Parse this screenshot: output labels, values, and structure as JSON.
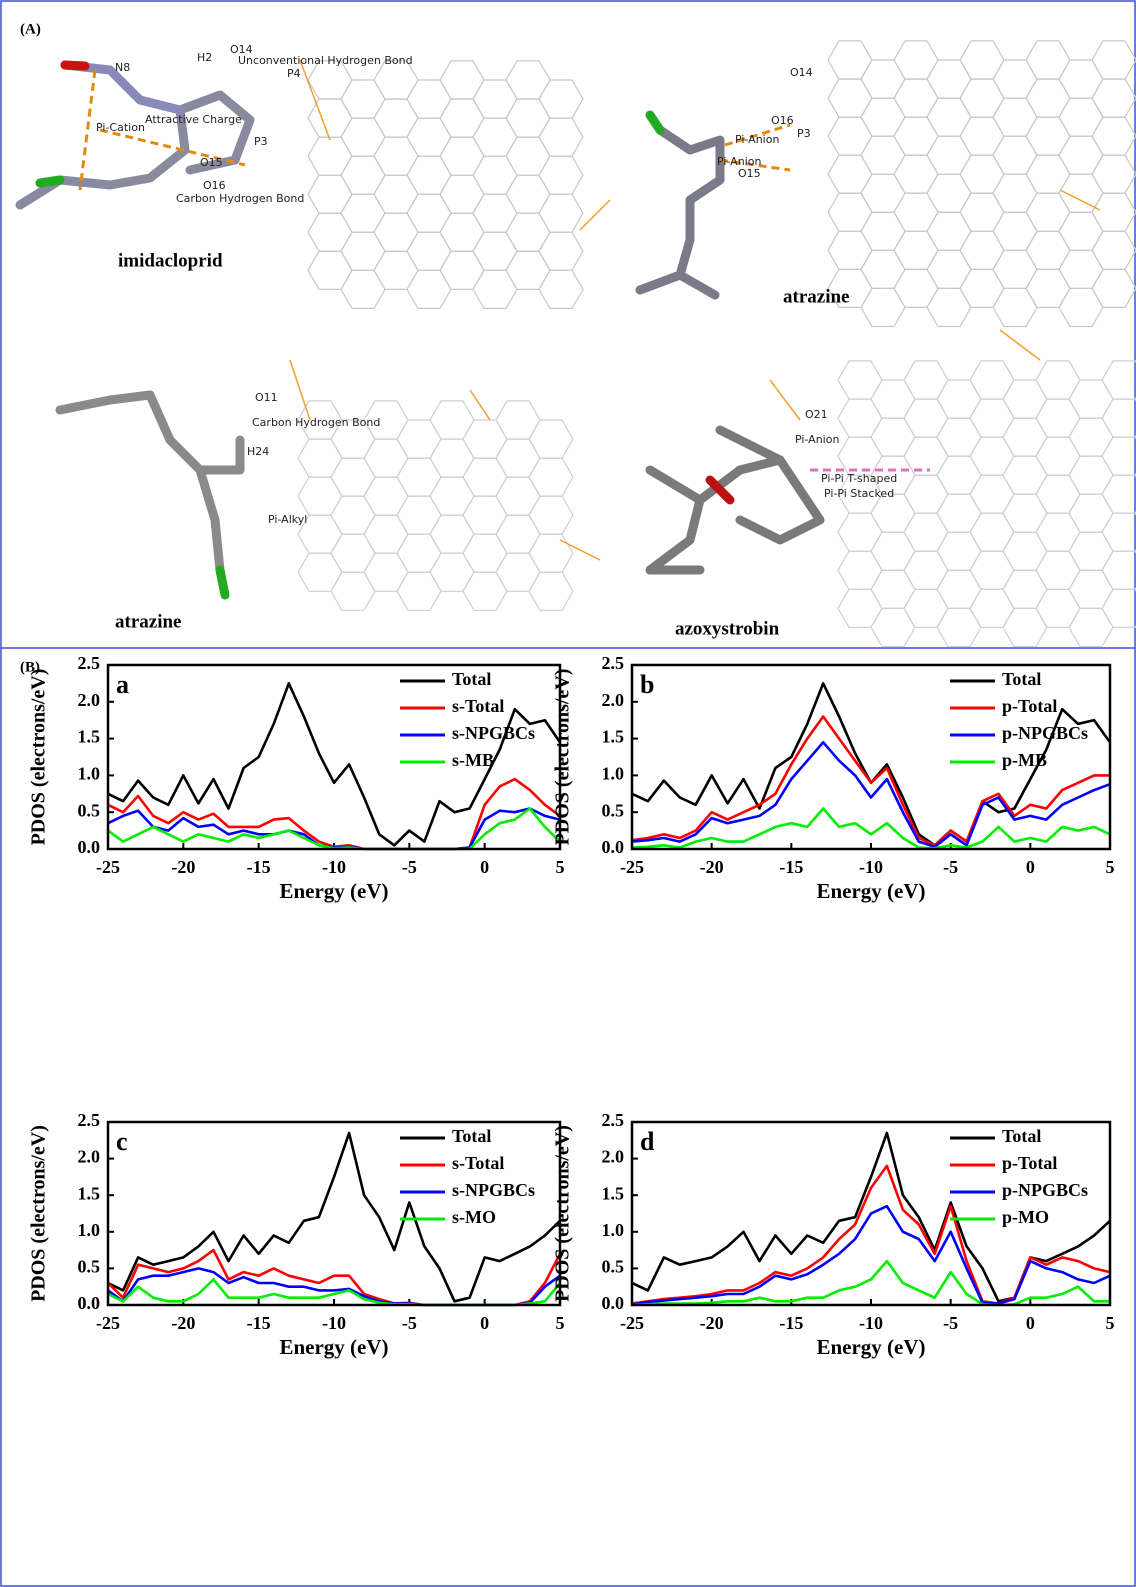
{
  "panel_a": {
    "label": "(A)",
    "views": [
      {
        "name": "imidacloprid",
        "labels": [
          "N8",
          "H2",
          "O14",
          "Unconventional Hydrogen Bond",
          "P4",
          "Pi-Cation",
          "Attractive Charge",
          "P3",
          "O15",
          "O16",
          "Carbon Hydrogen Bond"
        ]
      },
      {
        "name": "atrazine",
        "labels": [
          "O14",
          "O16",
          "P3",
          "Pi-Anion",
          "Pi-Anion",
          "O15"
        ]
      },
      {
        "name": "atrazine",
        "labels": [
          "O11",
          "Carbon Hydrogen Bond",
          "H24",
          "Pi-Alkyl"
        ]
      },
      {
        "name": "azoxystrobin",
        "labels": [
          "O21",
          "Pi-Anion",
          "Pi-Pi T-shaped",
          "Pi-Pi Stacked"
        ]
      }
    ]
  },
  "panel_b_label": "(B)",
  "chart_data": [
    {
      "type": "line",
      "panel": "a",
      "xlabel": "Energy (eV)",
      "ylabel": "PDOS (electrons/eV)",
      "xlim": [
        -25,
        5
      ],
      "ylim": [
        0,
        2.5
      ],
      "xticks": [
        -25,
        -20,
        -15,
        -10,
        -5,
        0,
        5
      ],
      "yticks": [
        {
          "value": 0,
          "label": "0.0"
        },
        0.5,
        {
          "value": 1,
          "label": "1.0"
        },
        1.5,
        {
          "value": 2,
          "label": "2.0"
        },
        2.5
      ],
      "legend": "upper right",
      "x": [
        -25,
        -24,
        -23,
        -22,
        -21,
        -20,
        -19,
        -18,
        -17,
        -16,
        -15,
        -14,
        -13,
        -12,
        -11,
        -10,
        -9,
        -8,
        -7,
        -6,
        -5,
        -4,
        -3,
        -2,
        -1,
        0,
        1,
        2,
        3,
        4,
        5
      ],
      "series": [
        {
          "name": "Total",
          "color": "#000000",
          "values": [
            0.75,
            0.65,
            0.93,
            0.7,
            0.6,
            1.0,
            0.62,
            0.95,
            0.55,
            1.1,
            1.25,
            1.7,
            2.25,
            1.8,
            1.3,
            0.9,
            1.15,
            0.7,
            0.2,
            0.05,
            0.25,
            0.1,
            0.65,
            0.5,
            0.55,
            0.95,
            1.35,
            1.9,
            1.7,
            1.75,
            1.45
          ]
        },
        {
          "name": "s-Total",
          "color": "#ff0000",
          "values": [
            0.6,
            0.5,
            0.72,
            0.45,
            0.35,
            0.5,
            0.4,
            0.48,
            0.3,
            0.3,
            0.3,
            0.4,
            0.42,
            0.25,
            0.1,
            0.03,
            0.05,
            0,
            0,
            0,
            0,
            0,
            0,
            0,
            0.02,
            0.6,
            0.85,
            0.95,
            0.8,
            0.6,
            0.45
          ]
        },
        {
          "name": "s-NPGBCs",
          "color": "#0000ff",
          "values": [
            0.35,
            0.45,
            0.52,
            0.3,
            0.25,
            0.42,
            0.3,
            0.33,
            0.2,
            0.25,
            0.2,
            0.2,
            0.25,
            0.2,
            0.05,
            0.02,
            0.03,
            0,
            0,
            0,
            0,
            0,
            0,
            0,
            0.02,
            0.4,
            0.52,
            0.5,
            0.55,
            0.45,
            0.4
          ]
        },
        {
          "name": "s-MB",
          "color": "#00ee00",
          "values": [
            0.25,
            0.1,
            0.2,
            0.3,
            0.2,
            0.1,
            0.2,
            0.15,
            0.1,
            0.2,
            0.15,
            0.2,
            0.25,
            0.15,
            0.05,
            0.01,
            0.02,
            0,
            0,
            0,
            0,
            0,
            0,
            0,
            0,
            0.2,
            0.35,
            0.4,
            0.55,
            0.3,
            0.1
          ]
        }
      ]
    },
    {
      "type": "line",
      "panel": "b",
      "xlabel": "Energy (eV)",
      "ylabel": "PDOS (electrons/eV)",
      "xlim": [
        -25,
        5
      ],
      "ylim": [
        0,
        2.5
      ],
      "xticks": [
        -25,
        -20,
        -15,
        -10,
        -5,
        0,
        5
      ],
      "yticks": [
        {
          "value": 0,
          "label": "0.0"
        },
        0.5,
        {
          "value": 1,
          "label": "1.0"
        },
        1.5,
        {
          "value": 2,
          "label": "2.0"
        },
        2.5
      ],
      "legend": "upper right",
      "x": [
        -25,
        -24,
        -23,
        -22,
        -21,
        -20,
        -19,
        -18,
        -17,
        -16,
        -15,
        -14,
        -13,
        -12,
        -11,
        -10,
        -9,
        -8,
        -7,
        -6,
        -5,
        -4,
        -3,
        -2,
        -1,
        0,
        1,
        2,
        3,
        4,
        5
      ],
      "series": [
        {
          "name": "Total",
          "color": "#000000",
          "values": [
            0.75,
            0.65,
            0.93,
            0.7,
            0.6,
            1.0,
            0.62,
            0.95,
            0.55,
            1.1,
            1.25,
            1.7,
            2.25,
            1.8,
            1.3,
            0.9,
            1.15,
            0.7,
            0.2,
            0.05,
            0.25,
            0.1,
            0.65,
            0.5,
            0.55,
            0.95,
            1.35,
            1.9,
            1.7,
            1.75,
            1.45
          ]
        },
        {
          "name": "p-Total",
          "color": "#ff0000",
          "values": [
            0.12,
            0.15,
            0.2,
            0.15,
            0.25,
            0.5,
            0.4,
            0.5,
            0.6,
            0.75,
            1.15,
            1.5,
            1.8,
            1.5,
            1.2,
            0.9,
            1.1,
            0.6,
            0.15,
            0.05,
            0.25,
            0.1,
            0.65,
            0.75,
            0.45,
            0.6,
            0.55,
            0.8,
            0.9,
            1.0,
            1.0
          ]
        },
        {
          "name": "p-NPGBCs",
          "color": "#0000ff",
          "values": [
            0.1,
            0.12,
            0.15,
            0.1,
            0.2,
            0.42,
            0.35,
            0.4,
            0.45,
            0.6,
            0.95,
            1.2,
            1.45,
            1.2,
            1.0,
            0.7,
            0.95,
            0.5,
            0.1,
            0.03,
            0.2,
            0.05,
            0.6,
            0.7,
            0.4,
            0.45,
            0.4,
            0.6,
            0.7,
            0.8,
            0.88
          ]
        },
        {
          "name": "p-MB",
          "color": "#00ee00",
          "values": [
            0.02,
            0.03,
            0.05,
            0.02,
            0.1,
            0.15,
            0.1,
            0.1,
            0.2,
            0.3,
            0.35,
            0.3,
            0.55,
            0.3,
            0.35,
            0.2,
            0.35,
            0.15,
            0.02,
            0.01,
            0.05,
            0.02,
            0.1,
            0.3,
            0.1,
            0.15,
            0.1,
            0.3,
            0.25,
            0.3,
            0.2
          ]
        }
      ]
    },
    {
      "type": "line",
      "panel": "c",
      "xlabel": "Energy (eV)",
      "ylabel": "PDOS (electrons/eV)",
      "xlim": [
        -25,
        5
      ],
      "ylim": [
        0,
        2.5
      ],
      "xticks": [
        -25,
        -20,
        -15,
        -10,
        -5,
        0,
        5
      ],
      "yticks": [
        {
          "value": 0,
          "label": "0.0"
        },
        0.5,
        {
          "value": 1,
          "label": "1.0"
        },
        1.5,
        {
          "value": 2,
          "label": "2.0"
        },
        2.5
      ],
      "legend": "upper right",
      "x": [
        -25,
        -24,
        -23,
        -22,
        -21,
        -20,
        -19,
        -18,
        -17,
        -16,
        -15,
        -14,
        -13,
        -12,
        -11,
        -10,
        -9,
        -8,
        -7,
        -6,
        -5,
        -4,
        -3,
        -2,
        -1,
        0,
        1,
        2,
        3,
        4,
        5
      ],
      "series": [
        {
          "name": "Total",
          "color": "#000000",
          "values": [
            0.3,
            0.2,
            0.65,
            0.55,
            0.6,
            0.65,
            0.8,
            1.0,
            0.6,
            0.95,
            0.7,
            0.95,
            0.85,
            1.15,
            1.2,
            1.75,
            2.35,
            1.5,
            1.2,
            0.75,
            1.4,
            0.8,
            0.5,
            0.05,
            0.1,
            0.65,
            0.6,
            0.7,
            0.8,
            0.95,
            1.15
          ]
        },
        {
          "name": "s-Total",
          "color": "#ff0000",
          "values": [
            0.3,
            0.1,
            0.55,
            0.5,
            0.45,
            0.5,
            0.6,
            0.75,
            0.35,
            0.45,
            0.4,
            0.5,
            0.4,
            0.35,
            0.3,
            0.4,
            0.4,
            0.15,
            0.08,
            0.02,
            0.03,
            0,
            0,
            0,
            0,
            0,
            0,
            0,
            0.05,
            0.3,
            0.7
          ]
        },
        {
          "name": "s-NPGBCs",
          "color": "#0000ff",
          "values": [
            0.2,
            0.05,
            0.35,
            0.4,
            0.4,
            0.45,
            0.5,
            0.45,
            0.3,
            0.38,
            0.3,
            0.3,
            0.25,
            0.25,
            0.2,
            0.2,
            0.22,
            0.12,
            0.05,
            0.02,
            0.02,
            0,
            0,
            0,
            0,
            0,
            0,
            0,
            0.03,
            0.25,
            0.4
          ]
        },
        {
          "name": "s-MO",
          "color": "#00ee00",
          "values": [
            0.15,
            0.05,
            0.25,
            0.1,
            0.05,
            0.05,
            0.15,
            0.35,
            0.1,
            0.1,
            0.1,
            0.15,
            0.1,
            0.1,
            0.1,
            0.15,
            0.2,
            0.08,
            0.03,
            0.01,
            0.01,
            0,
            0,
            0,
            0,
            0,
            0,
            0,
            0.02,
            0.05,
            0.3
          ]
        }
      ]
    },
    {
      "type": "line",
      "panel": "d",
      "xlabel": "Energy (eV)",
      "ylabel": "PDOS (electrons/eV)",
      "xlim": [
        -25,
        5
      ],
      "ylim": [
        0,
        2.5
      ],
      "xticks": [
        -25,
        -20,
        -15,
        -10,
        -5,
        0,
        5
      ],
      "yticks": [
        {
          "value": 0,
          "label": "0.0"
        },
        0.5,
        {
          "value": 1,
          "label": "1.0"
        },
        1.5,
        {
          "value": 2,
          "label": "2.0"
        },
        2.5
      ],
      "legend": "upper right",
      "x": [
        -25,
        -24,
        -23,
        -22,
        -21,
        -20,
        -19,
        -18,
        -17,
        -16,
        -15,
        -14,
        -13,
        -12,
        -11,
        -10,
        -9,
        -8,
        -7,
        -6,
        -5,
        -4,
        -3,
        -2,
        -1,
        0,
        1,
        2,
        3,
        4,
        5
      ],
      "series": [
        {
          "name": "Total",
          "color": "#000000",
          "values": [
            0.3,
            0.2,
            0.65,
            0.55,
            0.6,
            0.65,
            0.8,
            1.0,
            0.6,
            0.95,
            0.7,
            0.95,
            0.85,
            1.15,
            1.2,
            1.75,
            2.35,
            1.5,
            1.2,
            0.75,
            1.4,
            0.8,
            0.5,
            0.05,
            0.1,
            0.65,
            0.6,
            0.7,
            0.8,
            0.95,
            1.15
          ]
        },
        {
          "name": "p-Total",
          "color": "#ff0000",
          "values": [
            0.02,
            0.05,
            0.08,
            0.1,
            0.12,
            0.15,
            0.2,
            0.2,
            0.3,
            0.45,
            0.4,
            0.5,
            0.65,
            0.9,
            1.1,
            1.6,
            1.9,
            1.3,
            1.1,
            0.7,
            1.35,
            0.6,
            0.05,
            0.02,
            0.1,
            0.65,
            0.55,
            0.65,
            0.6,
            0.5,
            0.45
          ]
        },
        {
          "name": "p-NPGBCs",
          "color": "#0000ff",
          "values": [
            0.01,
            0.04,
            0.06,
            0.08,
            0.1,
            0.12,
            0.15,
            0.15,
            0.25,
            0.4,
            0.35,
            0.42,
            0.55,
            0.7,
            0.9,
            1.25,
            1.35,
            1.0,
            0.9,
            0.6,
            1.0,
            0.5,
            0.03,
            0.02,
            0.08,
            0.6,
            0.5,
            0.45,
            0.35,
            0.3,
            0.4
          ]
        },
        {
          "name": "p-MO",
          "color": "#00ee00",
          "values": [
            0,
            0.01,
            0.02,
            0.02,
            0.02,
            0.03,
            0.05,
            0.05,
            0.1,
            0.05,
            0.05,
            0.1,
            0.1,
            0.2,
            0.25,
            0.35,
            0.6,
            0.3,
            0.2,
            0.1,
            0.45,
            0.15,
            0.01,
            0,
            0.01,
            0.1,
            0.1,
            0.15,
            0.25,
            0.05,
            0.05
          ]
        }
      ]
    }
  ]
}
